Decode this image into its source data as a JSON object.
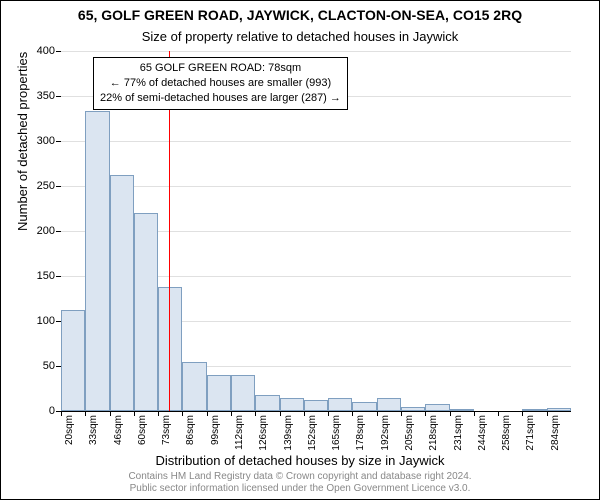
{
  "title": "65, GOLF GREEN ROAD, JAYWICK, CLACTON-ON-SEA, CO15 2RQ",
  "subtitle": "Size of property relative to detached houses in Jaywick",
  "y_axis_title": "Number of detached properties",
  "x_axis_title": "Distribution of detached houses by size in Jaywick",
  "footer_line1": "Contains HM Land Registry data © Crown copyright and database right 2024.",
  "footer_line2": "Public sector information licensed under the Open Government Licence v3.0.",
  "chart": {
    "type": "histogram",
    "y": {
      "min": 0,
      "max": 400,
      "ticks": [
        0,
        50,
        100,
        150,
        200,
        250,
        300,
        350,
        400
      ]
    },
    "x": {
      "start": 20,
      "step": 13,
      "count": 22,
      "tick_labels": [
        "20sqm",
        "33sqm",
        "46sqm",
        "60sqm",
        "73sqm",
        "86sqm",
        "99sqm",
        "112sqm",
        "126sqm",
        "139sqm",
        "152sqm",
        "165sqm",
        "178sqm",
        "192sqm",
        "205sqm",
        "218sqm",
        "231sqm",
        "244sqm",
        "258sqm",
        "271sqm",
        "284sqm"
      ]
    },
    "bars": {
      "values": [
        112,
        333,
        262,
        220,
        138,
        55,
        40,
        40,
        18,
        15,
        12,
        15,
        10,
        15,
        5,
        8,
        2,
        0,
        0,
        2,
        3
      ],
      "fill": "#dbe5f1",
      "stroke": "#7f9fc0"
    },
    "reference_line": {
      "value": 78,
      "color": "#ff0000"
    },
    "grid_color": "#e0e0e0",
    "background": "#ffffff"
  },
  "annotation": {
    "line1": "65 GOLF GREEN ROAD: 78sqm",
    "line2": "← 77% of detached houses are smaller (993)",
    "line3": "22% of semi-detached houses are larger (287) →"
  }
}
